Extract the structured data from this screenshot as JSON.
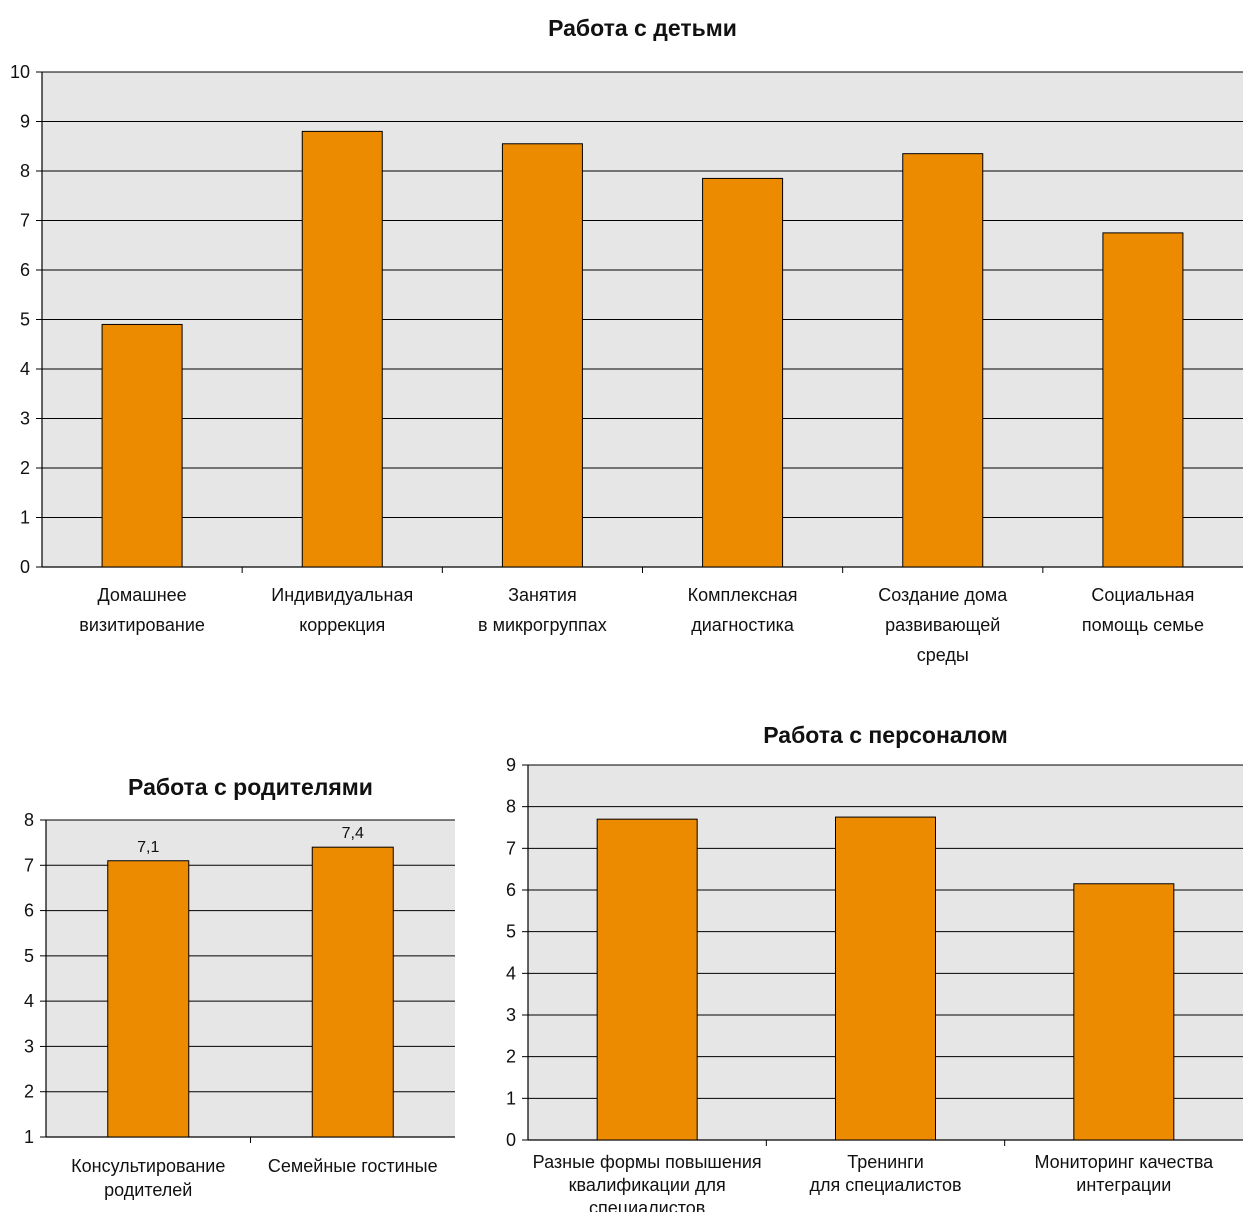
{
  "chart_data": [
    {
      "type": "bar",
      "title": "Работа с детьми",
      "categories": [
        [
          "Домашнее",
          "визитирование"
        ],
        [
          "Индивидуальная",
          "коррекция"
        ],
        [
          "Занятия",
          "в микрогруппах"
        ],
        [
          "Комплексная",
          "диагностика"
        ],
        [
          "Создание дома",
          "развивающей",
          "среды"
        ],
        [
          "Социальная",
          "помощь семье"
        ]
      ],
      "values": [
        4.9,
        8.8,
        8.55,
        7.85,
        8.35,
        6.75
      ],
      "ylim": [
        0,
        10
      ],
      "yticks": [
        0,
        1,
        2,
        3,
        4,
        5,
        6,
        7,
        8,
        9,
        10
      ],
      "grid": true,
      "bar_color": "#ed8b00",
      "plot_background": "#e6e6e6"
    },
    {
      "type": "bar",
      "title": "Работа с родителями",
      "categories": [
        [
          "Консультирование",
          "родителей"
        ],
        [
          "Семейные гостиные"
        ]
      ],
      "values": [
        7.1,
        7.4
      ],
      "data_labels": [
        "7,1",
        "7,4"
      ],
      "ylim": [
        1,
        8
      ],
      "yticks": [
        1,
        2,
        3,
        4,
        5,
        6,
        7,
        8
      ],
      "grid": true,
      "bar_color": "#ed8b00",
      "plot_background": "#e6e6e6"
    },
    {
      "type": "bar",
      "title": "Работа с персоналом",
      "categories": [
        [
          "Разные формы повышения",
          "квалификации для",
          "специалистов"
        ],
        [
          "Тренинги",
          "для специалистов"
        ],
        [
          "Мониторинг качества",
          "интеграции"
        ]
      ],
      "values": [
        7.7,
        7.75,
        6.15
      ],
      "ylim": [
        0,
        9
      ],
      "yticks": [
        0,
        1,
        2,
        3,
        4,
        5,
        6,
        7,
        8,
        9
      ],
      "grid": true,
      "bar_color": "#ed8b00",
      "plot_background": "#e6e6e6"
    }
  ]
}
